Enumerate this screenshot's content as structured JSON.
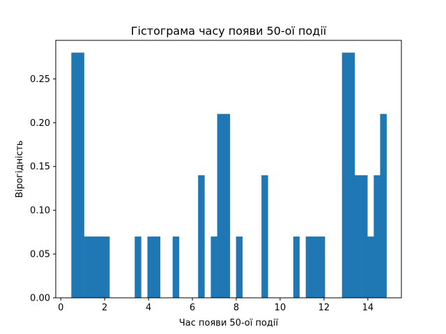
{
  "chart_data": {
    "type": "bar",
    "title": "Гістограма часу появи 50-ої події",
    "xlabel": "Час появи 50-ої події",
    "ylabel": "Вірогідність",
    "xlim": [
      -0.23,
      15.53
    ],
    "ylim": [
      0,
      0.294
    ],
    "xticks": [
      0,
      2,
      4,
      6,
      8,
      10,
      12,
      14
    ],
    "yticks": [
      0.0,
      0.05,
      0.1,
      0.15,
      0.2,
      0.25
    ],
    "ytick_labels": [
      "0.00",
      "0.05",
      "0.10",
      "0.15",
      "0.20",
      "0.25"
    ],
    "grid": false,
    "color": "#1f77b4",
    "bins": [
      {
        "x0": 0.48,
        "x1": 0.77,
        "value": 0.28
      },
      {
        "x0": 0.77,
        "x1": 1.06,
        "value": 0.28
      },
      {
        "x0": 1.06,
        "x1": 1.35,
        "value": 0.07
      },
      {
        "x0": 1.35,
        "x1": 1.64,
        "value": 0.07
      },
      {
        "x0": 1.64,
        "x1": 1.93,
        "value": 0.07
      },
      {
        "x0": 1.93,
        "x1": 2.22,
        "value": 0.07
      },
      {
        "x0": 3.37,
        "x1": 3.66,
        "value": 0.07
      },
      {
        "x0": 3.95,
        "x1": 4.24,
        "value": 0.07
      },
      {
        "x0": 4.24,
        "x1": 4.53,
        "value": 0.07
      },
      {
        "x0": 5.1,
        "x1": 5.39,
        "value": 0.07
      },
      {
        "x0": 6.26,
        "x1": 6.55,
        "value": 0.14
      },
      {
        "x0": 6.84,
        "x1": 7.13,
        "value": 0.07
      },
      {
        "x0": 7.13,
        "x1": 7.42,
        "value": 0.21
      },
      {
        "x0": 7.42,
        "x1": 7.71,
        "value": 0.21
      },
      {
        "x0": 7.99,
        "x1": 8.28,
        "value": 0.07
      },
      {
        "x0": 9.15,
        "x1": 9.44,
        "value": 0.14
      },
      {
        "x0": 10.6,
        "x1": 10.88,
        "value": 0.07
      },
      {
        "x0": 11.17,
        "x1": 11.46,
        "value": 0.07
      },
      {
        "x0": 11.46,
        "x1": 11.75,
        "value": 0.07
      },
      {
        "x0": 11.75,
        "x1": 12.04,
        "value": 0.07
      },
      {
        "x0": 12.82,
        "x1": 13.11,
        "value": 0.28
      },
      {
        "x0": 13.11,
        "x1": 13.4,
        "value": 0.28
      },
      {
        "x0": 13.4,
        "x1": 13.69,
        "value": 0.14
      },
      {
        "x0": 13.69,
        "x1": 13.98,
        "value": 0.14
      },
      {
        "x0": 13.98,
        "x1": 14.27,
        "value": 0.07
      },
      {
        "x0": 14.27,
        "x1": 14.56,
        "value": 0.14
      },
      {
        "x0": 14.56,
        "x1": 14.85,
        "value": 0.21
      }
    ]
  }
}
